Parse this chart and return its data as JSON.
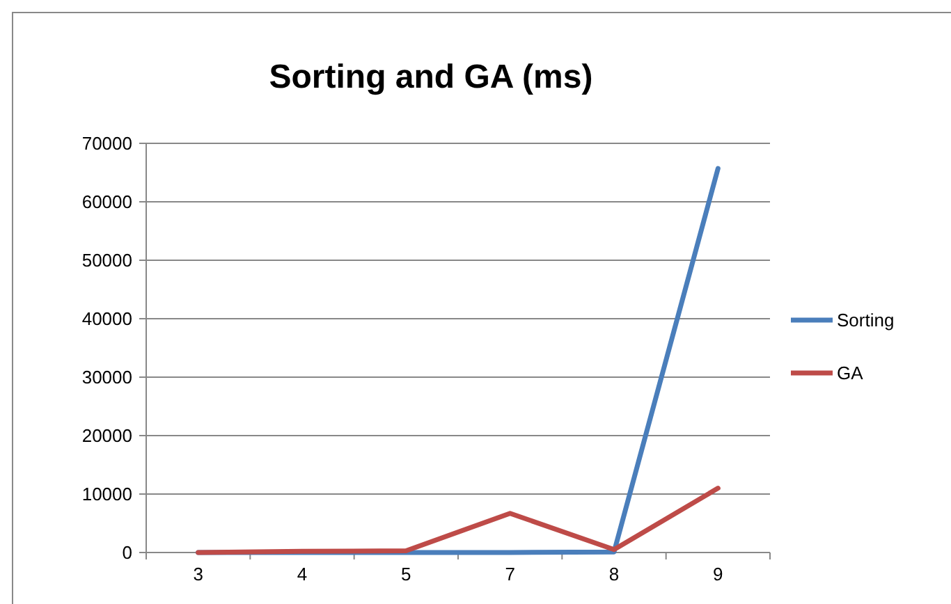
{
  "chart_data": {
    "type": "line",
    "title": "Sorting and GA (ms)",
    "categories": [
      "3",
      "4",
      "5",
      "7",
      "8",
      "9"
    ],
    "series": [
      {
        "name": "Sorting",
        "color": "#4a7ebb",
        "values": [
          0,
          0,
          0,
          0,
          100,
          65700
        ]
      },
      {
        "name": "GA",
        "color": "#be4b48",
        "values": [
          0,
          200,
          300,
          6700,
          500,
          11000
        ]
      }
    ],
    "ylim": [
      0,
      70000
    ],
    "yticks": [
      0,
      10000,
      20000,
      30000,
      40000,
      50000,
      60000,
      70000
    ],
    "grid": "y",
    "legend": "right",
    "marker": "none",
    "line_style": "solid"
  }
}
